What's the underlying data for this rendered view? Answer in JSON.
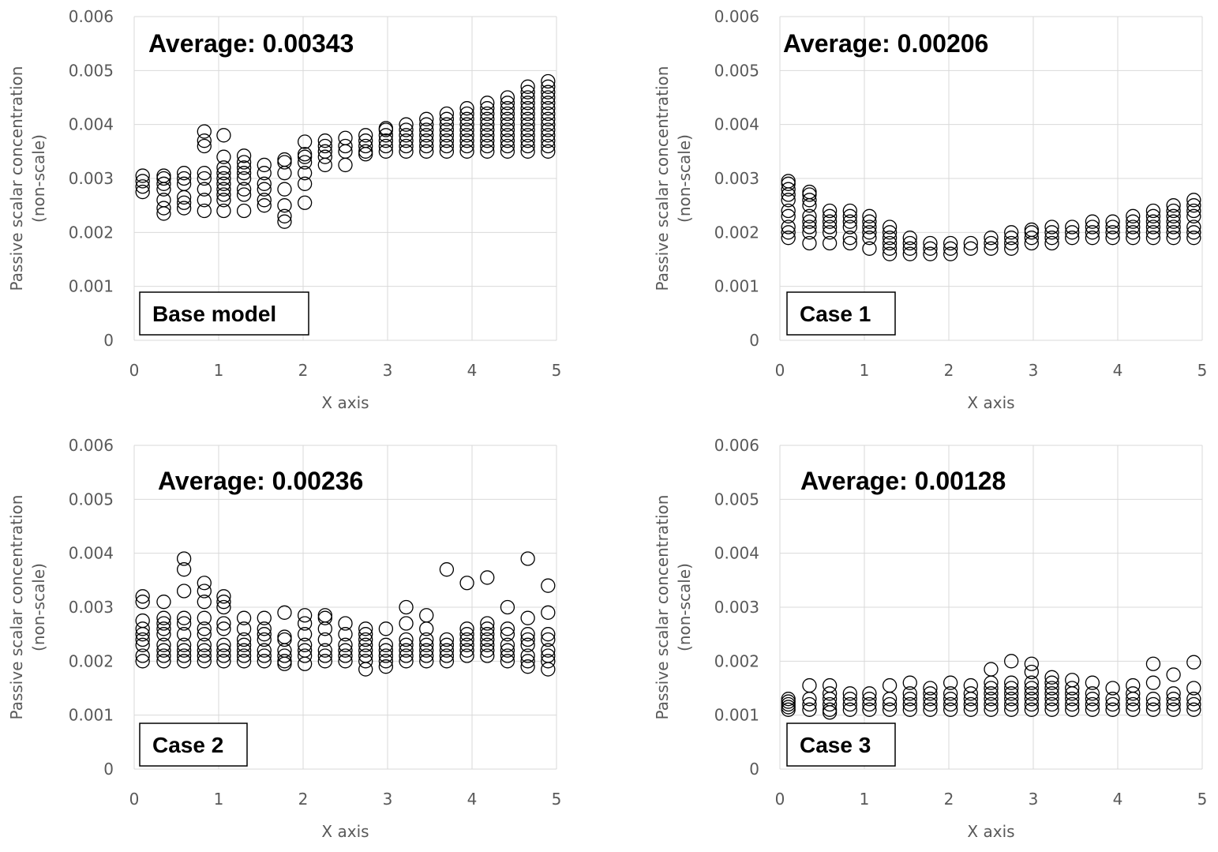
{
  "chart_data": [
    {
      "type": "scatter",
      "annotation": "Average: 0.00343",
      "case_label": "Base model",
      "xlabel": "X axis",
      "ylabel": "Passive scalar concentration (non-scale)",
      "ylabel_lines": [
        "Passive scalar concentration",
        "(non-scale)"
      ],
      "xlim": [
        0,
        5
      ],
      "ylim": [
        0,
        0.006
      ],
      "xticks": [
        "0",
        "1",
        "2",
        "3",
        "4",
        "5"
      ],
      "yticks": [
        "0",
        "0.001",
        "0.002",
        "0.003",
        "0.004",
        "0.005",
        "0.006"
      ],
      "grid": true,
      "groups": [
        {
          "x": 0.1,
          "y": [
            0.00275,
            0.00285,
            0.00295,
            0.00305
          ]
        },
        {
          "x": 0.35,
          "y": [
            0.00235,
            0.00245,
            0.0026,
            0.0028,
            0.0029,
            0.003,
            0.00305
          ]
        },
        {
          "x": 0.59,
          "y": [
            0.00245,
            0.00255,
            0.00265,
            0.0029,
            0.003,
            0.0031
          ]
        },
        {
          "x": 0.83,
          "y": [
            0.0024,
            0.0026,
            0.0028,
            0.003,
            0.0031,
            0.0036,
            0.0037,
            0.00387
          ]
        },
        {
          "x": 1.06,
          "y": [
            0.0024,
            0.0026,
            0.0027,
            0.0028,
            0.0029,
            0.003,
            0.0031,
            0.0032,
            0.0034,
            0.0038
          ]
        },
        {
          "x": 1.3,
          "y": [
            0.0024,
            0.0027,
            0.0028,
            0.003,
            0.0031,
            0.0032,
            0.0033,
            0.00342
          ]
        },
        {
          "x": 1.54,
          "y": [
            0.0025,
            0.0026,
            0.0028,
            0.0029,
            0.0031,
            0.00325
          ]
        },
        {
          "x": 1.78,
          "y": [
            0.0022,
            0.0023,
            0.0025,
            0.0028,
            0.0031,
            0.0033,
            0.00335
          ]
        },
        {
          "x": 2.02,
          "y": [
            0.00255,
            0.0029,
            0.0031,
            0.0033,
            0.0034,
            0.00345,
            0.00368
          ]
        },
        {
          "x": 2.26,
          "y": [
            0.00325,
            0.0034,
            0.0035,
            0.0036,
            0.0037
          ]
        },
        {
          "x": 2.5,
          "y": [
            0.00325,
            0.0035,
            0.0036,
            0.00375
          ]
        },
        {
          "x": 2.74,
          "y": [
            0.00345,
            0.0035,
            0.0036,
            0.0037,
            0.0038
          ]
        },
        {
          "x": 2.98,
          "y": [
            0.0035,
            0.0036,
            0.0037,
            0.0038,
            0.0039,
            0.00393
          ]
        },
        {
          "x": 3.22,
          "y": [
            0.0035,
            0.0036,
            0.0037,
            0.0038,
            0.0039,
            0.004
          ]
        },
        {
          "x": 3.46,
          "y": [
            0.0035,
            0.0036,
            0.0037,
            0.0038,
            0.0039,
            0.004,
            0.0041
          ]
        },
        {
          "x": 3.7,
          "y": [
            0.0035,
            0.0036,
            0.0037,
            0.0038,
            0.0039,
            0.004,
            0.0041,
            0.0042
          ]
        },
        {
          "x": 3.94,
          "y": [
            0.0035,
            0.0036,
            0.0037,
            0.0038,
            0.0039,
            0.004,
            0.0041,
            0.0042,
            0.0043
          ]
        },
        {
          "x": 4.18,
          "y": [
            0.0035,
            0.0036,
            0.0037,
            0.0038,
            0.0039,
            0.004,
            0.0041,
            0.0042,
            0.0043,
            0.0044
          ]
        },
        {
          "x": 4.42,
          "y": [
            0.0035,
            0.0036,
            0.0037,
            0.0038,
            0.0039,
            0.004,
            0.0041,
            0.0042,
            0.0043,
            0.0044,
            0.0045
          ]
        },
        {
          "x": 4.66,
          "y": [
            0.0035,
            0.0036,
            0.0037,
            0.0038,
            0.0039,
            0.004,
            0.0041,
            0.0042,
            0.0043,
            0.0044,
            0.0045,
            0.0046,
            0.0047
          ]
        },
        {
          "x": 4.9,
          "y": [
            0.0035,
            0.0036,
            0.0037,
            0.0038,
            0.0039,
            0.004,
            0.0041,
            0.0042,
            0.0043,
            0.0044,
            0.0045,
            0.0046,
            0.0047,
            0.0048
          ]
        }
      ]
    },
    {
      "type": "scatter",
      "annotation": "Average: 0.00206",
      "case_label": "Case 1",
      "xlabel": "X axis",
      "ylabel": "Passive scalar concentration (non-scale)",
      "ylabel_lines": [
        "Passive scalar concentration",
        "(non-scale)"
      ],
      "xlim": [
        0,
        5
      ],
      "ylim": [
        0,
        0.006
      ],
      "xticks": [
        "0",
        "1",
        "2",
        "3",
        "4",
        "5"
      ],
      "yticks": [
        "0",
        "0.001",
        "0.002",
        "0.003",
        "0.004",
        "0.005",
        "0.006"
      ],
      "grid": true,
      "groups": [
        {
          "x": 0.1,
          "y": [
            0.0019,
            0.002,
            0.0021,
            0.0023,
            0.0024,
            0.0026,
            0.0027,
            0.0028,
            0.0029,
            0.00295
          ]
        },
        {
          "x": 0.35,
          "y": [
            0.0018,
            0.002,
            0.0021,
            0.0022,
            0.0023,
            0.0025,
            0.0026,
            0.0027,
            0.00275
          ]
        },
        {
          "x": 0.59,
          "y": [
            0.0018,
            0.002,
            0.0021,
            0.0022,
            0.0023,
            0.0024
          ]
        },
        {
          "x": 0.83,
          "y": [
            0.0018,
            0.0019,
            0.0021,
            0.0022,
            0.0023,
            0.0024
          ]
        },
        {
          "x": 1.06,
          "y": [
            0.0017,
            0.0019,
            0.002,
            0.0021,
            0.0022,
            0.0023
          ]
        },
        {
          "x": 1.3,
          "y": [
            0.0016,
            0.0017,
            0.0018,
            0.0019,
            0.002,
            0.0021
          ]
        },
        {
          "x": 1.54,
          "y": [
            0.0016,
            0.0017,
            0.0018,
            0.0019
          ]
        },
        {
          "x": 1.78,
          "y": [
            0.0016,
            0.0017,
            0.0018
          ]
        },
        {
          "x": 2.02,
          "y": [
            0.0016,
            0.0017,
            0.0018
          ]
        },
        {
          "x": 2.26,
          "y": [
            0.0017,
            0.0018
          ]
        },
        {
          "x": 2.5,
          "y": [
            0.0017,
            0.0018,
            0.0019
          ]
        },
        {
          "x": 2.74,
          "y": [
            0.0017,
            0.0018,
            0.0019,
            0.002
          ]
        },
        {
          "x": 2.98,
          "y": [
            0.0018,
            0.0019,
            0.002,
            0.00205
          ]
        },
        {
          "x": 3.22,
          "y": [
            0.0018,
            0.0019,
            0.002,
            0.0021
          ]
        },
        {
          "x": 3.46,
          "y": [
            0.0019,
            0.002,
            0.0021
          ]
        },
        {
          "x": 3.7,
          "y": [
            0.0019,
            0.002,
            0.0021,
            0.0022
          ]
        },
        {
          "x": 3.94,
          "y": [
            0.0019,
            0.002,
            0.0021,
            0.0022
          ]
        },
        {
          "x": 4.18,
          "y": [
            0.0019,
            0.002,
            0.0021,
            0.0022,
            0.0023
          ]
        },
        {
          "x": 4.42,
          "y": [
            0.0019,
            0.002,
            0.0021,
            0.0022,
            0.0023,
            0.0024
          ]
        },
        {
          "x": 4.66,
          "y": [
            0.0019,
            0.002,
            0.0021,
            0.0022,
            0.0023,
            0.0024,
            0.0025
          ]
        },
        {
          "x": 4.9,
          "y": [
            0.0019,
            0.002,
            0.0021,
            0.0023,
            0.0024,
            0.0025,
            0.0026
          ]
        }
      ]
    },
    {
      "type": "scatter",
      "annotation": "Average: 0.00236",
      "case_label": "Case 2",
      "xlabel": "X axis",
      "ylabel": "Passive scalar concentration (non-scale)",
      "ylabel_lines": [
        "Passive scalar concentration",
        "(non-scale)"
      ],
      "xlim": [
        0,
        5
      ],
      "ylim": [
        0,
        0.006
      ],
      "xticks": [
        "0",
        "1",
        "2",
        "3",
        "4",
        "5"
      ],
      "yticks": [
        "0",
        "0.001",
        "0.002",
        "0.003",
        "0.004",
        "0.005",
        "0.006"
      ],
      "grid": true,
      "groups": [
        {
          "x": 0.1,
          "y": [
            0.002,
            0.0021,
            0.0023,
            0.0024,
            0.0025,
            0.0026,
            0.00275,
            0.0031,
            0.0032
          ]
        },
        {
          "x": 0.35,
          "y": [
            0.002,
            0.0021,
            0.0022,
            0.0023,
            0.0025,
            0.0026,
            0.0027,
            0.0028,
            0.0031
          ]
        },
        {
          "x": 0.59,
          "y": [
            0.002,
            0.0021,
            0.0022,
            0.0023,
            0.0025,
            0.0027,
            0.0028,
            0.0033,
            0.0037,
            0.0039
          ]
        },
        {
          "x": 0.83,
          "y": [
            0.002,
            0.0021,
            0.0022,
            0.0023,
            0.0025,
            0.0026,
            0.0028,
            0.0031,
            0.0033,
            0.00345
          ]
        },
        {
          "x": 1.06,
          "y": [
            0.002,
            0.0021,
            0.0022,
            0.0023,
            0.0026,
            0.0027,
            0.003,
            0.0031,
            0.0032
          ]
        },
        {
          "x": 1.3,
          "y": [
            0.002,
            0.0021,
            0.0022,
            0.0023,
            0.0024,
            0.0026,
            0.0028
          ]
        },
        {
          "x": 1.54,
          "y": [
            0.002,
            0.0021,
            0.0022,
            0.0024,
            0.0025,
            0.0026,
            0.0028
          ]
        },
        {
          "x": 1.78,
          "y": [
            0.00195,
            0.002,
            0.0021,
            0.0022,
            0.0024,
            0.00245,
            0.0029
          ]
        },
        {
          "x": 2.02,
          "y": [
            0.00195,
            0.0021,
            0.0022,
            0.0023,
            0.0025,
            0.0027,
            0.00285
          ]
        },
        {
          "x": 2.26,
          "y": [
            0.002,
            0.0021,
            0.0022,
            0.0024,
            0.0026,
            0.0028,
            0.00285
          ]
        },
        {
          "x": 2.5,
          "y": [
            0.002,
            0.0021,
            0.0022,
            0.0023,
            0.0025,
            0.0027
          ]
        },
        {
          "x": 2.74,
          "y": [
            0.00185,
            0.002,
            0.0021,
            0.0022,
            0.0023,
            0.0024,
            0.0025,
            0.0026
          ]
        },
        {
          "x": 2.98,
          "y": [
            0.0019,
            0.002,
            0.0021,
            0.0022,
            0.0023,
            0.0026
          ]
        },
        {
          "x": 3.22,
          "y": [
            0.002,
            0.0021,
            0.0022,
            0.0023,
            0.0024,
            0.0027,
            0.003
          ]
        },
        {
          "x": 3.46,
          "y": [
            0.002,
            0.0021,
            0.0022,
            0.0023,
            0.0024,
            0.0026,
            0.00285
          ]
        },
        {
          "x": 3.7,
          "y": [
            0.002,
            0.0021,
            0.0022,
            0.0023,
            0.0024,
            0.0037
          ]
        },
        {
          "x": 3.94,
          "y": [
            0.0021,
            0.0022,
            0.0023,
            0.0024,
            0.0025,
            0.0026,
            0.00345
          ]
        },
        {
          "x": 4.18,
          "y": [
            0.0021,
            0.0022,
            0.0023,
            0.0024,
            0.0025,
            0.0026,
            0.0027,
            0.00355
          ]
        },
        {
          "x": 4.42,
          "y": [
            0.002,
            0.0021,
            0.0022,
            0.0023,
            0.0025,
            0.0026,
            0.003
          ]
        },
        {
          "x": 4.66,
          "y": [
            0.0019,
            0.002,
            0.0021,
            0.0023,
            0.0024,
            0.0025,
            0.0028,
            0.0039
          ]
        },
        {
          "x": 4.9,
          "y": [
            0.00185,
            0.002,
            0.0021,
            0.0022,
            0.0024,
            0.0025,
            0.0029,
            0.0034
          ]
        }
      ]
    },
    {
      "type": "scatter",
      "annotation": "Average: 0.00128",
      "case_label": "Case 3",
      "xlabel": "X axis",
      "ylabel": "Passive scalar concentration (non-scale)",
      "ylabel_lines": [
        "Passive scalar concentration",
        "(non-scale)"
      ],
      "xlim": [
        0,
        5
      ],
      "ylim": [
        0,
        0.006
      ],
      "xticks": [
        "0",
        "1",
        "2",
        "3",
        "4",
        "5"
      ],
      "yticks": [
        "0",
        "0.001",
        "0.002",
        "0.003",
        "0.004",
        "0.005",
        "0.006"
      ],
      "grid": true,
      "groups": [
        {
          "x": 0.1,
          "y": [
            0.0011,
            0.00115,
            0.0012,
            0.00125,
            0.0013
          ]
        },
        {
          "x": 0.35,
          "y": [
            0.0011,
            0.0012,
            0.0013,
            0.00155
          ]
        },
        {
          "x": 0.59,
          "y": [
            0.00105,
            0.0011,
            0.0012,
            0.0013,
            0.0014,
            0.00155
          ]
        },
        {
          "x": 0.83,
          "y": [
            0.0011,
            0.0012,
            0.0013,
            0.0014
          ]
        },
        {
          "x": 1.06,
          "y": [
            0.0011,
            0.0012,
            0.0013,
            0.0014
          ]
        },
        {
          "x": 1.3,
          "y": [
            0.0011,
            0.0012,
            0.0013,
            0.00155
          ]
        },
        {
          "x": 1.54,
          "y": [
            0.0011,
            0.0012,
            0.0013,
            0.0014,
            0.0016
          ]
        },
        {
          "x": 1.78,
          "y": [
            0.0011,
            0.0012,
            0.0013,
            0.0014,
            0.0015
          ]
        },
        {
          "x": 2.02,
          "y": [
            0.0011,
            0.0012,
            0.0013,
            0.0014,
            0.0016
          ]
        },
        {
          "x": 2.26,
          "y": [
            0.0011,
            0.0012,
            0.0013,
            0.0014,
            0.00155
          ]
        },
        {
          "x": 2.5,
          "y": [
            0.0011,
            0.0012,
            0.0013,
            0.0014,
            0.0015,
            0.0016,
            0.00185
          ]
        },
        {
          "x": 2.74,
          "y": [
            0.0011,
            0.0012,
            0.0013,
            0.0014,
            0.0015,
            0.0016,
            0.002
          ]
        },
        {
          "x": 2.98,
          "y": [
            0.0011,
            0.0012,
            0.0013,
            0.0014,
            0.0015,
            0.0016,
            0.0018,
            0.00195
          ]
        },
        {
          "x": 3.22,
          "y": [
            0.0011,
            0.0012,
            0.0013,
            0.0014,
            0.0015,
            0.0016,
            0.0017
          ]
        },
        {
          "x": 3.46,
          "y": [
            0.0011,
            0.0012,
            0.0013,
            0.0014,
            0.0015,
            0.00165
          ]
        },
        {
          "x": 3.7,
          "y": [
            0.0011,
            0.0012,
            0.0013,
            0.0014,
            0.0016
          ]
        },
        {
          "x": 3.94,
          "y": [
            0.0011,
            0.0012,
            0.0013,
            0.0015
          ]
        },
        {
          "x": 4.18,
          "y": [
            0.0011,
            0.0012,
            0.0013,
            0.0014,
            0.00155
          ]
        },
        {
          "x": 4.42,
          "y": [
            0.0011,
            0.0012,
            0.0013,
            0.0016,
            0.00195
          ]
        },
        {
          "x": 4.66,
          "y": [
            0.0011,
            0.0012,
            0.0013,
            0.0014,
            0.00175
          ]
        },
        {
          "x": 4.9,
          "y": [
            0.0011,
            0.0012,
            0.0013,
            0.0015,
            0.00198
          ]
        }
      ]
    }
  ]
}
